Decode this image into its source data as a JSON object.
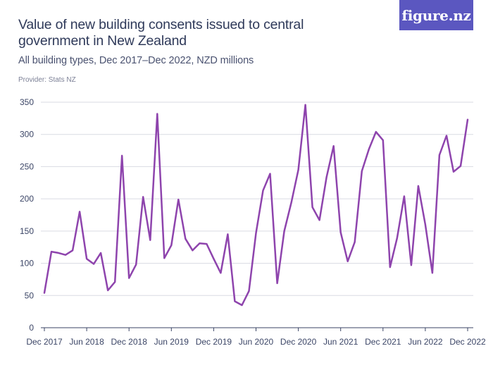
{
  "header": {
    "title": "Value of new building consents issued to central government in New Zealand",
    "subtitle": "All building types, Dec 2017–Dec 2022, NZD millions",
    "provider": "Provider: Stats NZ"
  },
  "logo": {
    "text": "figure.nz",
    "color": "#5b57c0"
  },
  "chart_data": {
    "type": "line",
    "title": "Value of new building consents issued to central government in New Zealand",
    "subtitle": "All building types, Dec 2017–Dec 2022, NZD millions",
    "xlabel": "",
    "ylabel": "",
    "ylim": [
      0,
      350
    ],
    "yticks": [
      0,
      50,
      100,
      150,
      200,
      250,
      300,
      350
    ],
    "xtick_labels": [
      "Dec 2017",
      "Jun 2018",
      "Dec 2018",
      "Jun 2019",
      "Dec 2019",
      "Jun 2020",
      "Dec 2020",
      "Jun 2021",
      "Dec 2021",
      "Jun 2022",
      "Dec 2022"
    ],
    "xtick_indices": [
      0,
      6,
      12,
      18,
      24,
      30,
      36,
      42,
      48,
      54,
      60
    ],
    "grid": true,
    "line_color": "#8e44ad",
    "series": [
      {
        "name": "Value of new building consents",
        "values": [
          54,
          118,
          116,
          113,
          120,
          180,
          107,
          99,
          116,
          58,
          71,
          267,
          77,
          98,
          203,
          136,
          332,
          108,
          128,
          199,
          138,
          120,
          131,
          130,
          107,
          85,
          145,
          41,
          35,
          57,
          147,
          213,
          239,
          69,
          150,
          194,
          245,
          346,
          187,
          167,
          234,
          282,
          148,
          103,
          133,
          243,
          277,
          304,
          291,
          94,
          139,
          204,
          97,
          220,
          160,
          85,
          268,
          298,
          242,
          251,
          323
        ]
      }
    ]
  }
}
